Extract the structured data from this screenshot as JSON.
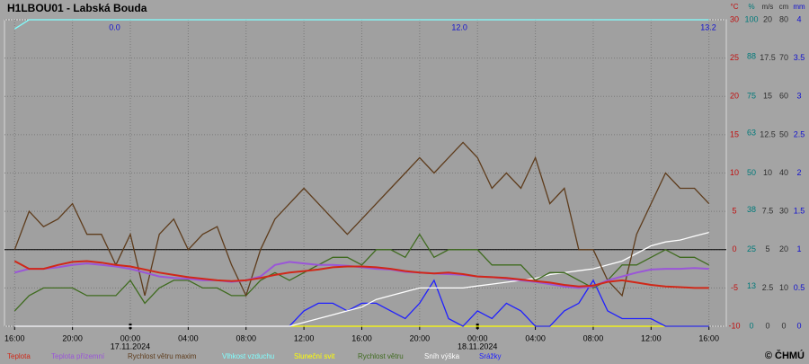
{
  "chart_data": {
    "type": "line",
    "title": "H1LBOU01 - Labská Bouda",
    "credit": "© ČHMÚ",
    "xlim": [
      15.3,
      65.2
    ],
    "xticks": [
      {
        "value": 16,
        "label": "16:00"
      },
      {
        "value": 20,
        "label": "20:00"
      },
      {
        "value": 24,
        "label": "00:00"
      },
      {
        "value": 28,
        "label": "04:00"
      },
      {
        "value": 32,
        "label": "08:00"
      },
      {
        "value": 36,
        "label": "12:00"
      },
      {
        "value": 40,
        "label": "16:00"
      },
      {
        "value": 44,
        "label": "20:00"
      },
      {
        "value": 48,
        "label": "00:00"
      },
      {
        "value": 52,
        "label": "04:00"
      },
      {
        "value": 56,
        "label": "08:00"
      },
      {
        "value": 60,
        "label": "12:00"
      },
      {
        "value": 64,
        "label": "16:00"
      }
    ],
    "date_labels": [
      {
        "value": 24,
        "label": "17.11.2024"
      },
      {
        "value": 48,
        "label": "18.11.2024"
      }
    ],
    "annotations": [
      {
        "value": 23.3,
        "label": "0.0"
      },
      {
        "value": 47.3,
        "label": "12.0"
      },
      {
        "value": 64.5,
        "label": "13.2"
      }
    ],
    "grid": true,
    "axes": [
      {
        "unit": "°C",
        "color": "#c01010",
        "lim": [
          -10,
          30
        ],
        "ticks": [
          -10,
          -5,
          0,
          5,
          10,
          15,
          20,
          25,
          30
        ]
      },
      {
        "unit": "%",
        "color": "#007a7a",
        "lim": [
          0,
          100
        ],
        "ticks": [
          0,
          13,
          25,
          38,
          50,
          63,
          75,
          88,
          100
        ]
      },
      {
        "unit": "m/s",
        "color": "#303030",
        "lim": [
          0,
          20
        ],
        "ticks": [
          0,
          2.5,
          5,
          7.5,
          10,
          12.5,
          15,
          17.5,
          20
        ]
      },
      {
        "unit": "cm",
        "color": "#303030",
        "lim": [
          0,
          80
        ],
        "ticks": [
          0,
          10,
          20,
          30,
          40,
          50,
          60,
          70,
          80
        ]
      },
      {
        "unit": "mm",
        "color": "#1010d0",
        "lim": [
          0,
          4
        ],
        "ticks": [
          0,
          0.5,
          1,
          1.5,
          2,
          2.5,
          3,
          3.5,
          4
        ]
      }
    ],
    "x": [
      16,
      17,
      18,
      19,
      20,
      21,
      22,
      23,
      24,
      25,
      26,
      27,
      28,
      29,
      30,
      31,
      32,
      33,
      34,
      35,
      36,
      37,
      38,
      39,
      40,
      41,
      42,
      43,
      44,
      45,
      46,
      47,
      48,
      49,
      50,
      51,
      52,
      53,
      54,
      55,
      56,
      57,
      58,
      59,
      60,
      61,
      62,
      63,
      64
    ],
    "series": [
      {
        "name": "Vlhkost vzduchu",
        "color": "#80ffff",
        "axis": 1,
        "values": [
          97,
          100,
          100,
          100,
          100,
          100,
          100,
          100,
          100,
          100,
          100,
          100,
          100,
          100,
          100,
          100,
          100,
          100,
          100,
          100,
          100,
          100,
          100,
          100,
          100,
          100,
          100,
          100,
          100,
          100,
          100,
          100,
          100,
          100,
          100,
          100,
          100,
          100,
          100,
          100,
          100,
          100,
          100,
          100,
          100,
          100,
          100,
          100,
          100
        ]
      },
      {
        "name": "Sluneční svit",
        "color": "#ffff00",
        "axis": 1,
        "values": [
          0,
          0,
          0,
          0,
          0,
          0,
          0,
          0,
          0,
          0,
          0,
          0,
          0,
          0,
          0,
          0,
          0,
          0,
          0,
          0,
          0,
          0,
          0,
          0,
          0,
          0,
          0,
          0,
          0,
          0,
          0,
          0,
          0,
          0,
          0,
          0,
          0,
          0,
          0,
          0,
          0,
          0,
          0,
          0,
          0,
          0,
          0,
          0,
          0
        ]
      },
      {
        "name": "Srážky",
        "color": "#2020ff",
        "axis": 4,
        "values": [
          0,
          0,
          0,
          0,
          0,
          0,
          0,
          0,
          0,
          0,
          0,
          0,
          0,
          0,
          0,
          0,
          0,
          0,
          0,
          0,
          0.2,
          0.3,
          0.3,
          0.2,
          0.3,
          0.3,
          0.2,
          0.1,
          0.3,
          0.6,
          0.1,
          0,
          0.2,
          0.1,
          0.3,
          0.2,
          0,
          0,
          0.2,
          0.3,
          0.6,
          0.2,
          0.1,
          0.1,
          0.1,
          0,
          0,
          0,
          0
        ]
      },
      {
        "name": "Sníh výška",
        "color": "#ffffff",
        "axis": 3,
        "values": [
          0,
          0,
          0,
          0,
          0,
          0,
          0,
          0,
          0,
          0,
          0,
          0,
          0,
          0,
          0,
          0,
          0,
          0,
          0,
          0,
          1,
          2,
          3,
          4,
          5,
          7,
          8,
          9,
          10,
          10,
          10,
          10,
          10.5,
          11,
          11.5,
          12,
          12.5,
          13.5,
          14,
          14.5,
          15,
          16,
          17,
          19,
          21,
          22,
          22.5,
          23.5,
          24.5
        ]
      },
      {
        "name": "Rychlost větru",
        "color": "#3f6b1f",
        "axis": 2,
        "values": [
          1,
          2,
          2.5,
          2.5,
          2.5,
          2,
          2,
          2,
          3,
          1.5,
          2.5,
          3,
          3,
          2.5,
          2.5,
          2,
          2,
          3,
          3.5,
          3,
          3.5,
          4,
          4.5,
          4.5,
          4,
          5,
          5,
          4.5,
          6,
          4.5,
          5,
          5,
          5,
          4,
          4,
          4,
          3,
          3.5,
          3.5,
          3,
          2.5,
          3,
          4,
          4,
          4.5,
          5,
          4.5,
          4.5,
          4
        ]
      },
      {
        "name": "Rychlost větru maxim",
        "color": "#5e3c1c",
        "axis": 2,
        "values": [
          5,
          7.5,
          6.5,
          7,
          8,
          6,
          6,
          4,
          6,
          2,
          6,
          7,
          5,
          6,
          6.5,
          4,
          2,
          5,
          7,
          8,
          9,
          8,
          7,
          6,
          7,
          8,
          9,
          10,
          11,
          10,
          11,
          12,
          11,
          9,
          10,
          9,
          11,
          8,
          9,
          5,
          5,
          3,
          2,
          6,
          8,
          10,
          9,
          9,
          8
        ]
      },
      {
        "name": "Teplota přízemní",
        "color": "#9a55d8",
        "axis": 0,
        "values": [
          -3,
          -2.5,
          -2.5,
          -2.3,
          -2,
          -1.8,
          -2,
          -2.2,
          -2.5,
          -3,
          -3.5,
          -3.7,
          -3.8,
          -4,
          -4,
          -4.2,
          -4,
          -3.5,
          -2,
          -1.6,
          -1.8,
          -2,
          -2,
          -2.1,
          -2.3,
          -2.5,
          -2.6,
          -2.9,
          -3,
          -3.1,
          -3.2,
          -3.3,
          -3.5,
          -3.6,
          -3.8,
          -4,
          -4.2,
          -4.5,
          -4.8,
          -5,
          -4.8,
          -4,
          -3.5,
          -3,
          -2.6,
          -2.5,
          -2.5,
          -2.4,
          -2.5
        ]
      },
      {
        "name": "Teplota",
        "color": "#d02818",
        "axis": 0,
        "values": [
          -1.5,
          -2.5,
          -2.5,
          -2,
          -1.6,
          -1.5,
          -1.7,
          -2,
          -2.2,
          -2.6,
          -3,
          -3.3,
          -3.6,
          -3.8,
          -4,
          -4.1,
          -4,
          -3.7,
          -3.3,
          -3,
          -2.8,
          -2.6,
          -2.3,
          -2.2,
          -2.2,
          -2.3,
          -2.5,
          -2.8,
          -3,
          -3.1,
          -3,
          -3.2,
          -3.5,
          -3.6,
          -3.7,
          -3.9,
          -4.1,
          -4.3,
          -4.6,
          -4.8,
          -4.7,
          -4.2,
          -4,
          -4.3,
          -4.6,
          -4.8,
          -4.9,
          -5,
          -5
        ]
      }
    ],
    "legend_order": [
      7,
      6,
      5,
      0,
      1,
      4,
      3,
      2
    ]
  }
}
